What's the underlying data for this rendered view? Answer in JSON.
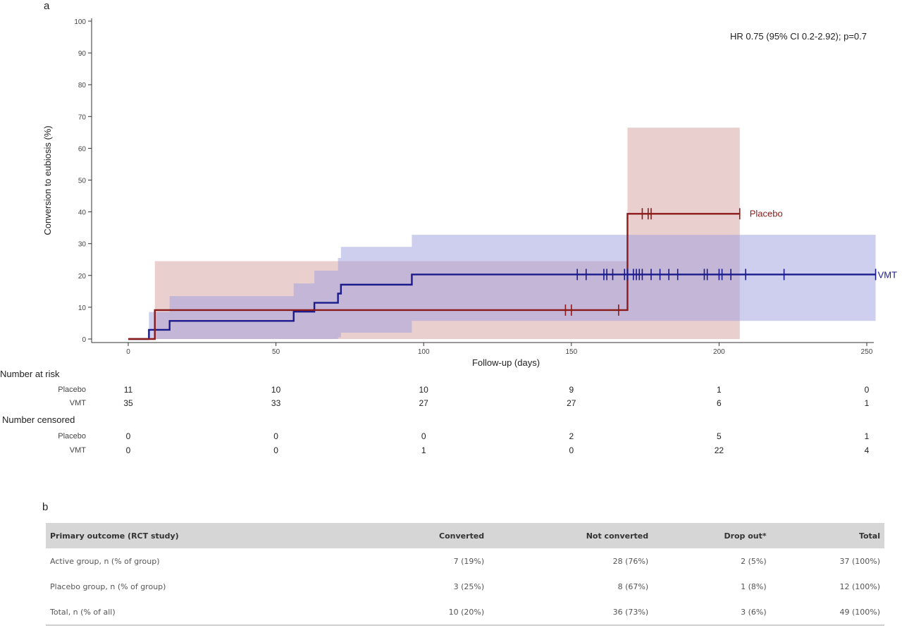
{
  "panel_a_label": "a",
  "panel_b_label": "b",
  "chart_data": {
    "type": "line",
    "xlabel": "Follow-up (days)",
    "ylabel": "Conversion to eubiosis (%)",
    "xlim": [
      0,
      250
    ],
    "ylim": [
      0,
      100
    ],
    "x_ticks": [
      0,
      50,
      100,
      150,
      200,
      250
    ],
    "y_ticks": [
      0,
      10,
      20,
      30,
      40,
      50,
      60,
      70,
      80,
      90,
      100
    ],
    "annotation": "HR 0.75 (95% CI 0.2-2.92); p=0.7",
    "colors": {
      "placebo": "#8b1a1a",
      "vmt": "#1a1a8c",
      "placebo_band": "#d9a8a8",
      "vmt_band": "#9d9ddd"
    },
    "series": [
      {
        "name": "Placebo",
        "steps": [
          [
            0,
            0
          ],
          [
            9,
            9.1
          ],
          [
            169,
            39.4
          ],
          [
            207,
            39.4
          ]
        ],
        "ci_lower": [
          [
            0,
            0
          ],
          [
            9,
            0
          ],
          [
            169,
            0
          ],
          [
            207,
            0
          ]
        ],
        "ci_upper": [
          [
            0,
            0
          ],
          [
            9,
            24.5
          ],
          [
            169,
            66.5
          ],
          [
            207,
            66.5
          ]
        ],
        "censor_x": [
          148,
          150,
          166,
          174,
          176,
          177,
          207
        ]
      },
      {
        "name": "VMT",
        "steps": [
          [
            0,
            0
          ],
          [
            7,
            2.9
          ],
          [
            14,
            5.7
          ],
          [
            56,
            8.6
          ],
          [
            63,
            11.4
          ],
          [
            71,
            14.3
          ],
          [
            72,
            17.1
          ],
          [
            96,
            20.3
          ],
          [
            253,
            20.3
          ]
        ],
        "ci_lower": [
          [
            0,
            0
          ],
          [
            7,
            0
          ],
          [
            14,
            0
          ],
          [
            56,
            0
          ],
          [
            63,
            0
          ],
          [
            71,
            0.5
          ],
          [
            72,
            2
          ],
          [
            96,
            5.7
          ],
          [
            253,
            5.7
          ]
        ],
        "ci_upper": [
          [
            0,
            0
          ],
          [
            7,
            8.5
          ],
          [
            14,
            13.5
          ],
          [
            56,
            17.5
          ],
          [
            63,
            21.5
          ],
          [
            71,
            25.5
          ],
          [
            72,
            29
          ],
          [
            96,
            32.8
          ],
          [
            253,
            32.8
          ]
        ],
        "censor_x": [
          152,
          155,
          161,
          162,
          164,
          168,
          169,
          171,
          172,
          173,
          174,
          177,
          180,
          183,
          186,
          195,
          196,
          200,
          201,
          204,
          209,
          222,
          253
        ]
      }
    ]
  },
  "risk_table": {
    "number_at_risk_title": "Number at risk",
    "number_censored_title": "Number censored",
    "times": [
      0,
      50,
      100,
      150,
      200,
      250
    ],
    "at_risk": [
      {
        "name": "Placebo",
        "values": [
          "11",
          "10",
          "10",
          "9",
          "1",
          "0"
        ]
      },
      {
        "name": "VMT",
        "values": [
          "35",
          "33",
          "27",
          "27",
          "6",
          "1"
        ]
      }
    ],
    "censored": [
      {
        "name": "Placebo",
        "values": [
          "0",
          "0",
          "0",
          "2",
          "5",
          "1"
        ]
      },
      {
        "name": "VMT",
        "values": [
          "0",
          "0",
          "1",
          "0",
          "22",
          "4"
        ]
      }
    ]
  },
  "outcome_table": {
    "headers": [
      "Primary outcome (RCT study)",
      "Converted",
      "Not converted",
      "Drop out*",
      "Total"
    ],
    "rows": [
      [
        "Active group, n (% of group)",
        "7 (19%)",
        "28 (76%)",
        "2 (5%)",
        "37 (100%)"
      ],
      [
        "Placebo group, n (% of group)",
        "3 (25%)",
        "8 (67%)",
        "1 (8%)",
        "12 (100%)"
      ],
      [
        "Total, n (% of all)",
        "10 (20%)",
        "36 (73%)",
        "3 (6%)",
        "49 (100%)"
      ]
    ]
  }
}
